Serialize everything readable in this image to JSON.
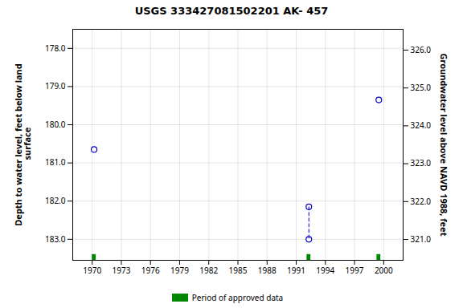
{
  "chart_data": {
    "type": "scatter",
    "title": "USGS 333427081502201 AK- 457",
    "ylabel": "Depth to water level, feet below land\n surface",
    "y2label": "Groundwater level above NAVD 1988, feet",
    "xlim": [
      1968.0,
      2002.0
    ],
    "xticks": [
      1970,
      1973,
      1976,
      1979,
      1982,
      1985,
      1988,
      1991,
      1994,
      1997,
      2000
    ],
    "ylim": [
      183.55,
      177.5
    ],
    "yticks": [
      {
        "value": 178.0,
        "label": "178.0"
      },
      {
        "value": 179.0,
        "label": "179.0"
      },
      {
        "value": 180.0,
        "label": "180.0"
      },
      {
        "value": 181.0,
        "label": "181.0"
      },
      {
        "value": 182.0,
        "label": "182.0"
      },
      {
        "value": 183.0,
        "label": "183.0"
      }
    ],
    "y2lim": [
      320.45,
      326.55
    ],
    "y2ticks": [
      {
        "value": 321.0,
        "label": "321.0"
      },
      {
        "value": 322.0,
        "label": "322.0"
      },
      {
        "value": 323.0,
        "label": "323.0"
      },
      {
        "value": 324.0,
        "label": "324.0"
      },
      {
        "value": 325.0,
        "label": "325.0"
      },
      {
        "value": 326.0,
        "label": "326.0"
      }
    ],
    "grid": true,
    "series": [
      {
        "type": "scatter",
        "color": "#0000cc",
        "marker": "circle",
        "x": [
          1970.2,
          1992.3,
          1992.3,
          1999.5
        ],
        "values": [
          180.65,
          182.15,
          183.0,
          179.35
        ]
      },
      {
        "type": "line",
        "color": "#0000cc",
        "line_style": "dashed",
        "x": [
          1992.3,
          1992.3
        ],
        "values": [
          182.15,
          183.0
        ]
      },
      {
        "name": "Period of approved data",
        "type": "bar",
        "color": "#008800",
        "x": [
          1970.2,
          1992.3,
          1999.5
        ]
      }
    ]
  }
}
